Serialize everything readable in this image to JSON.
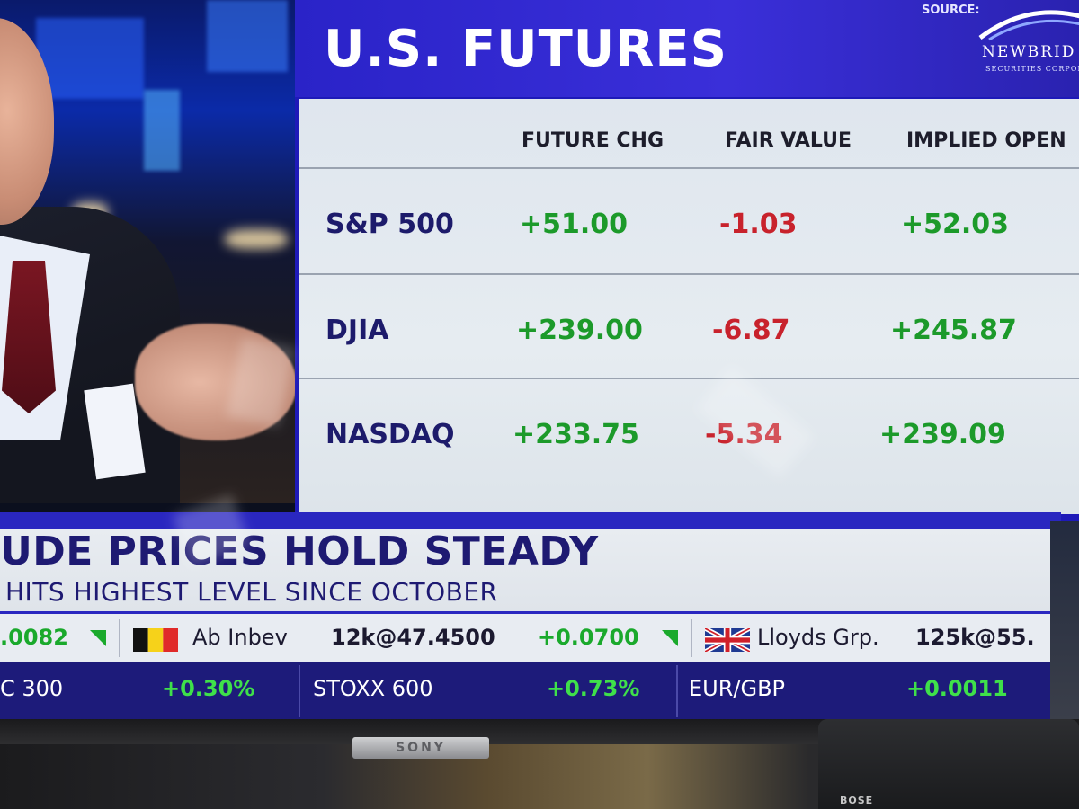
{
  "panel": {
    "title": "U.S. FUTURES",
    "source_label": "SOURCE:",
    "sponsor": {
      "name": "NEWBRID",
      "sub": "SECURITIES CORPOR"
    }
  },
  "table": {
    "columns": [
      "FUTURE CHG",
      "FAIR VALUE",
      "IMPLIED OPEN"
    ],
    "rows": [
      {
        "name": "S&P 500",
        "future_chg": "+51.00",
        "fair_value": "-1.03",
        "implied_open": "+52.03"
      },
      {
        "name": "DJIA",
        "future_chg": "+239.00",
        "fair_value": "-6.87",
        "implied_open": "+245.87"
      },
      {
        "name": "NASDAQ",
        "future_chg": "+233.75",
        "fair_value": "-5.34",
        "implied_open": "+239.09"
      }
    ]
  },
  "headline": {
    "main": "UDE PRICES HOLD STEADY",
    "sub": "HITS HIGHEST LEVEL SINCE OCTOBER"
  },
  "ticker1": {
    "left_value": ".0082",
    "item1": {
      "name": "Ab Inbev",
      "trade": "12k@47.4500",
      "change": "+0.0700"
    },
    "item2": {
      "name": "Lloyds Grp.",
      "trade": "125k@55."
    }
  },
  "ticker2": [
    {
      "name": "C 300",
      "change": "+0.30%"
    },
    {
      "name": "STOXX 600",
      "change": "+0.73%"
    },
    {
      "name": "EUR/GBP",
      "change": "+0.0011"
    }
  ],
  "tv": {
    "brand": "SONY",
    "speaker_brand": "BOSE"
  },
  "colors": {
    "panel_blue": "#1e1ab8",
    "positive": "#1c9a2a",
    "negative": "#c8222c",
    "label_navy": "#1d1b6b"
  }
}
